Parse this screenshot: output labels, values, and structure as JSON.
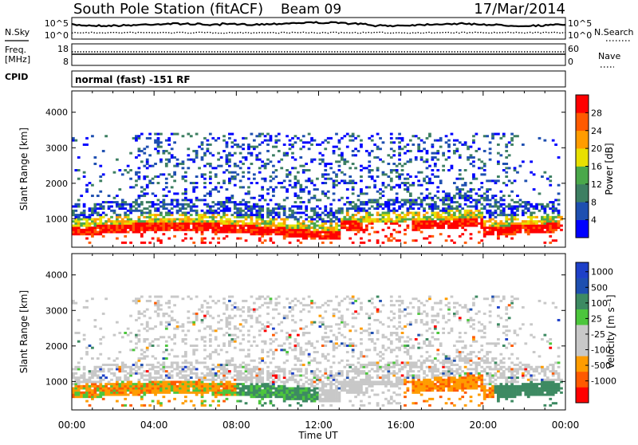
{
  "header": {
    "station": "South Pole Station (fitACF)",
    "beam": "Beam 09",
    "date": "17/Mar/2014"
  },
  "left_labels": {
    "nsky": "N.Sky",
    "freq_line1": "Freq.",
    "freq_line2": "[MHz]",
    "cpid": "CPID"
  },
  "right_labels": {
    "nsearch": "N.Search",
    "nave": "Nave"
  },
  "cpid_text": "normal (fast) -151 RF",
  "noise_panel": {
    "left_ticks": [
      "10^5",
      "10^0"
    ],
    "right_ticks": [
      "10^5",
      "10^0"
    ]
  },
  "freq_panel": {
    "left_ticks": [
      "18",
      "8"
    ],
    "right_ticks": [
      "60",
      "0"
    ]
  },
  "colors": {
    "power_scale": [
      "#0000ff",
      "#1e4fb0",
      "#3d7f62",
      "#4aa84a",
      "#e8e000",
      "#ff9c00",
      "#ff5a00",
      "#ff0000"
    ],
    "velocity_scale": [
      "#ff0000",
      "#ff5a00",
      "#ff9c00",
      "#c8c8c8",
      "#c8c8c8",
      "#4cc63c",
      "#3d8a62",
      "#1e4fb0",
      "#1e40c8"
    ]
  },
  "chart_data": [
    {
      "type": "heatmap",
      "name": "power",
      "ylabel": "Slant Range [km]",
      "y_ticks": [
        "4000",
        "3000",
        "2000",
        "1000"
      ],
      "ylim": [
        200,
        4600
      ],
      "colorbar_label": "Power [dB]",
      "colorbar_ticks": [
        "28",
        "24",
        "20",
        "16",
        "12",
        "8",
        "4"
      ],
      "clim": [
        0,
        32
      ]
    },
    {
      "type": "heatmap",
      "name": "velocity",
      "ylabel": "Slant Range [km]",
      "y_ticks": [
        "4000",
        "3000",
        "2000",
        "1000"
      ],
      "ylim": [
        200,
        4600
      ],
      "colorbar_label": "Velocity [m s⁻¹]",
      "colorbar_ticks": [
        "1000",
        "500",
        "100",
        "25",
        "-25",
        "-100",
        "-500",
        "-1000"
      ]
    }
  ],
  "x_axis": {
    "xlabel": "Time UT",
    "ticks": [
      "00:00",
      "04:00",
      "08:00",
      "12:00",
      "16:00",
      "20:00",
      "00:00"
    ],
    "hours": [
      0,
      4,
      8,
      12,
      16,
      20,
      24
    ],
    "xlim": [
      0,
      24
    ]
  }
}
